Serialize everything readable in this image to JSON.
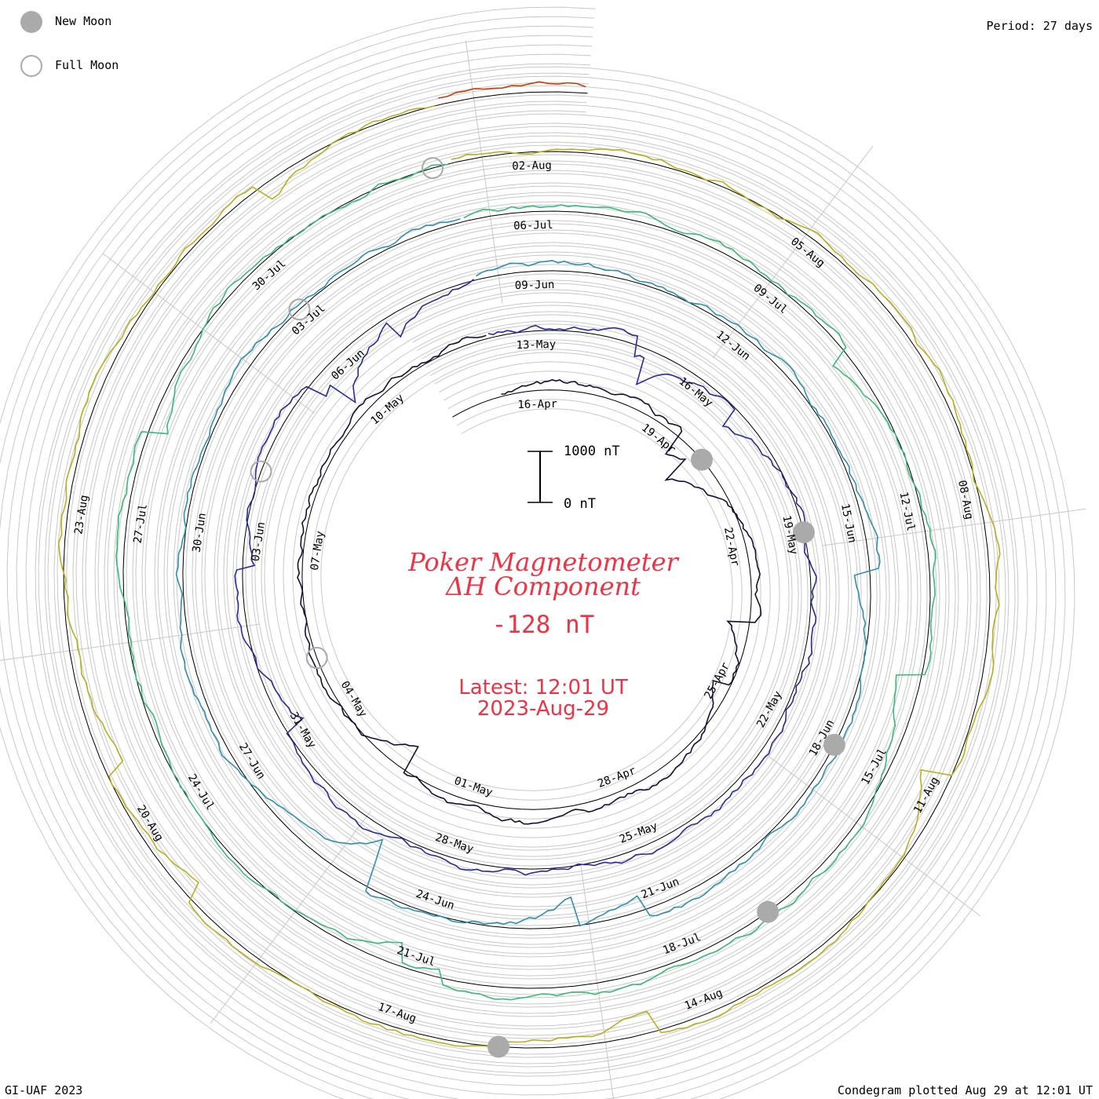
{
  "legend": {
    "new_moon_label": "New Moon",
    "full_moon_label": "Full Moon",
    "new_moon_color": "#aaaaaa",
    "full_moon_color": "#aaaaaa"
  },
  "period_label": "Period: 27 days",
  "footer": {
    "left": "GI-UAF 2023",
    "right": "Condegram plotted Aug 29 at 12:01 UT"
  },
  "title": {
    "line1": "Poker Magnetometer",
    "line2": "ΔH Component",
    "value": "-128 nT",
    "latest_line1": "Latest: 12:01 UT",
    "latest_line2": "2023-Aug-29",
    "color": "#ee3344"
  },
  "scale_bar": {
    "top_label": "1000 nT",
    "bottom_label": "0 nT"
  },
  "chart_data": {
    "type": "line",
    "period_days": 27,
    "component": "ΔH",
    "units": "nT",
    "scale_bar_nT": 1000,
    "latest_value_nT": -128,
    "grid": true,
    "cycles": [
      {
        "color": "#111133",
        "start_label_dates": [
          "16-Apr",
          "19-Apr",
          "22-Apr",
          "25-Apr",
          "28-Apr"
        ]
      },
      {
        "color": "#2a2a99",
        "start_label_dates": [
          "01-May",
          "04-May",
          "07-May",
          "10-May",
          "13-May",
          "16-May",
          "19-May",
          "22-May",
          "25-May"
        ]
      },
      {
        "color": "#2e8fb0",
        "start_label_dates": [
          "28-May",
          "31-May",
          "03-Jun",
          "06-Jun",
          "09-Jun",
          "12-Jun",
          "15-Jun",
          "18-Jun",
          "21-Jun"
        ]
      },
      {
        "color": "#3cb878",
        "start_label_dates": [
          "24-Jun",
          "27-Jun",
          "30-Jun",
          "03-Jul",
          "06-Jul",
          "09-Jul",
          "12-Jul",
          "15-Jul",
          "18-Jul"
        ]
      },
      {
        "color": "#b8b020",
        "start_label_dates": [
          "21-Jul",
          "24-Jul",
          "27-Jul",
          "30-Jul",
          "02-Aug",
          "05-Aug",
          "08-Aug",
          "11-Aug",
          "14-Aug"
        ]
      },
      {
        "color": "#c04010",
        "start_label_dates": [
          "17-Aug",
          "20-Aug",
          "23-Aug"
        ]
      }
    ],
    "date_labels": [
      "16-Apr",
      "19-Apr",
      "22-Apr",
      "25-Apr",
      "28-Apr",
      "01-May",
      "04-May",
      "07-May",
      "10-May",
      "13-May",
      "16-May",
      "19-May",
      "22-May",
      "25-May",
      "28-May",
      "31-May",
      "03-Jun",
      "06-Jun",
      "09-Jun",
      "12-Jun",
      "15-Jun",
      "18-Jun",
      "21-Jun",
      "24-Jun",
      "27-Jun",
      "30-Jun",
      "03-Jul",
      "06-Jul",
      "09-Jul",
      "12-Jul",
      "15-Jul",
      "18-Jul",
      "21-Jul",
      "24-Jul",
      "27-Jul",
      "30-Jul",
      "02-Aug",
      "05-Aug",
      "08-Aug",
      "11-Aug",
      "14-Aug",
      "17-Aug",
      "20-Aug",
      "23-Aug"
    ],
    "new_moons": [
      "2023-04-20",
      "2023-05-19",
      "2023-06-18",
      "2023-07-17",
      "2023-08-16"
    ],
    "full_moons": [
      "2023-05-05",
      "2023-06-04",
      "2023-07-03",
      "2023-08-01"
    ]
  }
}
